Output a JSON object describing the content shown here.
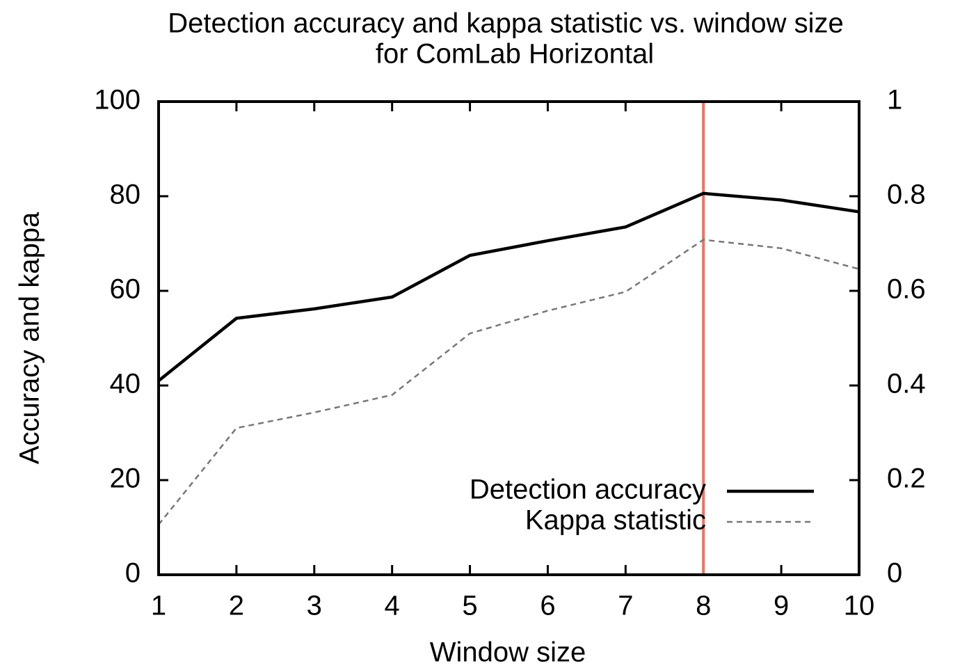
{
  "chart_data": {
    "type": "line",
    "title": [
      "Detection accuracy and kappa statistic vs. window size",
      "for ComLab Horizontal"
    ],
    "x_label": "Window size",
    "y_label": "Accuracy and kappa",
    "x": [
      1,
      2,
      3,
      4,
      5,
      6,
      7,
      8,
      9,
      10
    ],
    "series": [
      {
        "name": "Detection accuracy",
        "color": "#000000",
        "values": [
          41,
          54.2,
          56.2,
          58.7,
          67.5,
          70.6,
          73.5,
          80.6,
          79.2,
          76.7
        ]
      },
      {
        "name": "Kappa statistic",
        "color": "#777777",
        "axis": "y2",
        "dashed": true,
        "values": [
          0.106,
          0.31,
          0.343,
          0.38,
          0.51,
          0.558,
          0.598,
          0.708,
          0.69,
          0.646
        ]
      }
    ],
    "xlim": [
      1,
      10
    ],
    "xticks": [
      1,
      2,
      3,
      4,
      5,
      6,
      7,
      8,
      9,
      10
    ],
    "ylim": [
      0,
      100
    ],
    "yticks": [
      0,
      20,
      40,
      60,
      80,
      100
    ],
    "y2lim": [
      0,
      1
    ],
    "y2ticks": [
      0,
      0.2,
      0.4,
      0.6,
      0.8,
      1
    ],
    "vline": {
      "x": 8,
      "color": "#f07060"
    },
    "legend": "lower right"
  }
}
